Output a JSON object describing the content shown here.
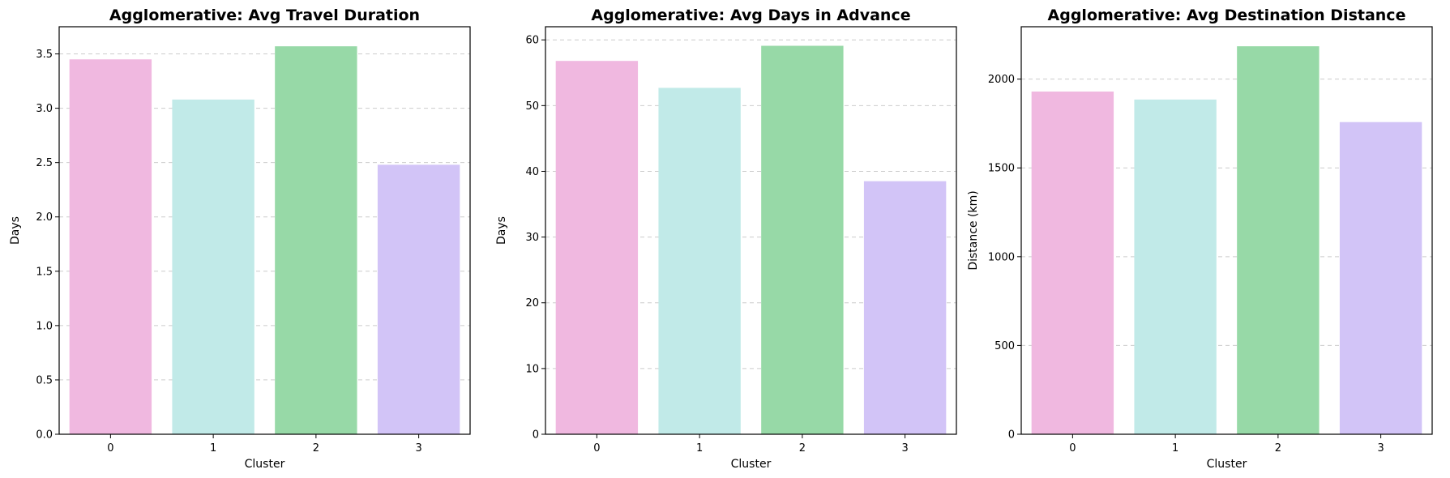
{
  "chart_data": [
    {
      "type": "bar",
      "title": "Agglomerative: Avg Travel Duration",
      "xlabel": "Cluster",
      "ylabel": "Days",
      "categories": [
        "0",
        "1",
        "2",
        "3"
      ],
      "values": [
        3.45,
        3.08,
        3.57,
        2.48
      ],
      "ylim": [
        0,
        3.75
      ],
      "yticks": [
        0.0,
        0.5,
        1.0,
        1.5,
        2.0,
        2.5,
        3.0,
        3.5
      ],
      "ytick_labels": [
        "0.0",
        "0.5",
        "1.0",
        "1.5",
        "2.0",
        "2.5",
        "3.0",
        "3.5"
      ],
      "grid": "y-dashed",
      "colors": [
        "#f0b8e0",
        "#c1eae8",
        "#97d9a7",
        "#d2c4f7"
      ]
    },
    {
      "type": "bar",
      "title": "Agglomerative: Avg Days in Advance",
      "xlabel": "Cluster",
      "ylabel": "Days",
      "categories": [
        "0",
        "1",
        "2",
        "3"
      ],
      "values": [
        56.8,
        52.7,
        59.1,
        38.5
      ],
      "ylim": [
        0,
        62
      ],
      "yticks": [
        0,
        10,
        20,
        30,
        40,
        50,
        60
      ],
      "ytick_labels": [
        "0",
        "10",
        "20",
        "30",
        "40",
        "50",
        "60"
      ],
      "grid": "y-dashed",
      "colors": [
        "#f0b8e0",
        "#c1eae8",
        "#97d9a7",
        "#d2c4f7"
      ]
    },
    {
      "type": "bar",
      "title": "Agglomerative: Avg Destination Distance",
      "xlabel": "Cluster",
      "ylabel": "Distance (km)",
      "categories": [
        "0",
        "1",
        "2",
        "3"
      ],
      "values": [
        1930,
        1885,
        2185,
        1758
      ],
      "ylim": [
        0,
        2295
      ],
      "yticks": [
        0,
        500,
        1000,
        1500,
        2000
      ],
      "ytick_labels": [
        "0",
        "500",
        "1000",
        "1500",
        "2000"
      ],
      "grid": "y-dashed",
      "colors": [
        "#f0b8e0",
        "#c1eae8",
        "#97d9a7",
        "#d2c4f7"
      ]
    }
  ]
}
